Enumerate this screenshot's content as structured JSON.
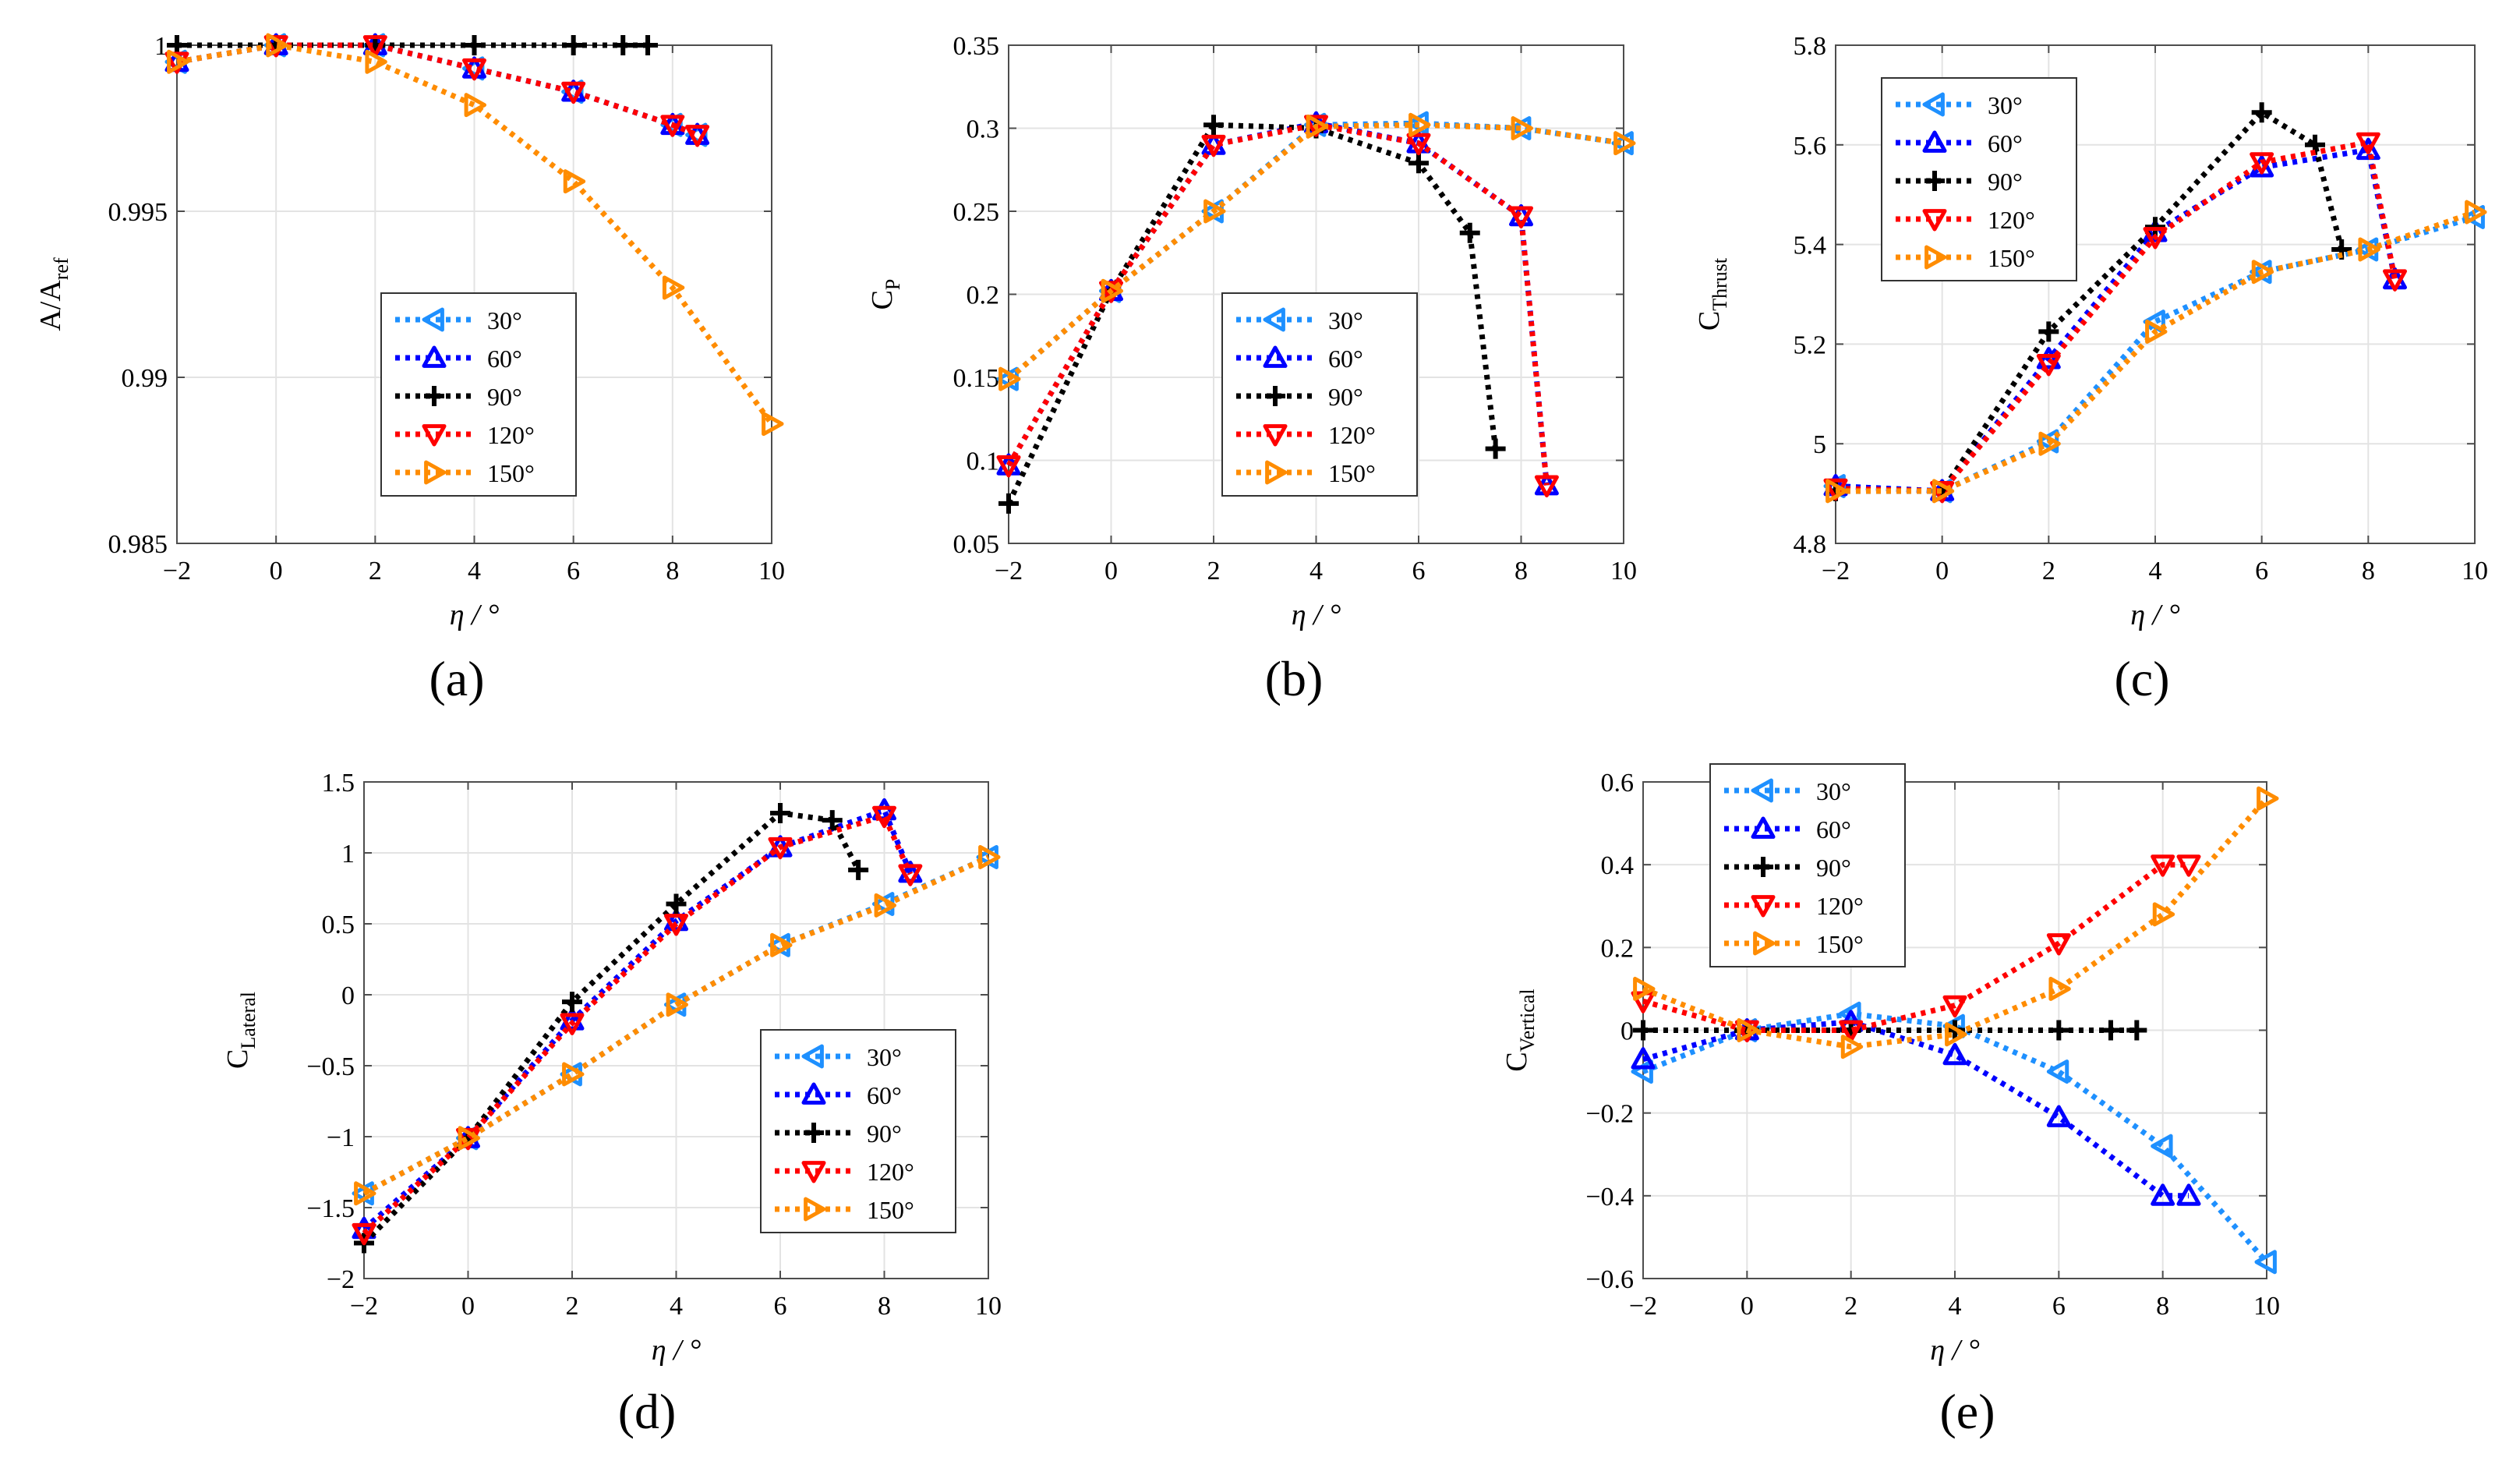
{
  "colors": {
    "30": "#1e90ff",
    "60": "#0000ff",
    "90": "#000000",
    "120": "#ff0000",
    "150": "#ff8c00"
  },
  "chart_data": [
    {
      "id": "a",
      "type": "line",
      "panel_label": "(a)",
      "ylabel_main": "A/A",
      "ylabel_sub": "ref",
      "xlabel": "η / °",
      "xlim": [
        -2,
        10
      ],
      "ylim": [
        0.985,
        1.0
      ],
      "xticks": [
        -2,
        0,
        2,
        4,
        6,
        8,
        10
      ],
      "xtick_labels": [
        "−2",
        "0",
        "2",
        "4",
        "6",
        "8",
        "10"
      ],
      "yticks": [
        0.985,
        0.99,
        0.995,
        1.0
      ],
      "ytick_labels": [
        "0.985",
        "0.99",
        "0.995",
        "1"
      ],
      "legend_position": "lower-center",
      "series": [
        {
          "name": "30°",
          "key": "30",
          "marker": "tri-left",
          "x": [
            -2,
            0,
            2,
            4,
            6,
            8,
            8.5
          ],
          "y": [
            0.9995,
            1.0,
            1.0,
            0.9993,
            0.9986,
            0.9976,
            0.9973
          ]
        },
        {
          "name": "60°",
          "key": "60",
          "marker": "tri-up",
          "x": [
            -2,
            0,
            2,
            4,
            6,
            8,
            8.5
          ],
          "y": [
            0.9995,
            1.0,
            1.0,
            0.9993,
            0.9986,
            0.9976,
            0.9973
          ]
        },
        {
          "name": "90°",
          "key": "90",
          "marker": "plus",
          "x": [
            -2,
            0,
            2,
            4,
            6,
            7,
            7.5
          ],
          "y": [
            1.0,
            1.0,
            1.0,
            1.0,
            1.0,
            1.0,
            1.0
          ]
        },
        {
          "name": "120°",
          "key": "120",
          "marker": "tri-down",
          "x": [
            -2,
            0,
            2,
            4,
            6,
            8,
            8.5
          ],
          "y": [
            0.9995,
            1.0,
            1.0,
            0.9993,
            0.9986,
            0.9976,
            0.9973
          ]
        },
        {
          "name": "150°",
          "key": "150",
          "marker": "tri-right",
          "x": [
            -2,
            0,
            2,
            4,
            6,
            8,
            10
          ],
          "y": [
            0.9995,
            1.0,
            0.9995,
            0.9982,
            0.9959,
            0.9927,
            0.9886
          ]
        }
      ]
    },
    {
      "id": "b",
      "type": "line",
      "panel_label": "(b)",
      "ylabel_main": "C",
      "ylabel_sub": "P",
      "xlabel": "η / °",
      "xlim": [
        -2,
        10
      ],
      "ylim": [
        0.05,
        0.35
      ],
      "xticks": [
        -2,
        0,
        2,
        4,
        6,
        8,
        10
      ],
      "xtick_labels": [
        "−2",
        "0",
        "2",
        "4",
        "6",
        "8",
        "10"
      ],
      "yticks": [
        0.05,
        0.1,
        0.15,
        0.2,
        0.25,
        0.3,
        0.35
      ],
      "ytick_labels": [
        "0.05",
        "0.1",
        "0.15",
        "0.2",
        "0.25",
        "0.3",
        "0.35"
      ],
      "legend_position": "lower-center",
      "series": [
        {
          "name": "30°",
          "key": "30",
          "marker": "tri-left",
          "x": [
            -2,
            0,
            2,
            4,
            6,
            8,
            10
          ],
          "y": [
            0.149,
            0.202,
            0.25,
            0.302,
            0.303,
            0.3,
            0.291
          ]
        },
        {
          "name": "60°",
          "key": "60",
          "marker": "tri-up",
          "x": [
            -2,
            0,
            2,
            4,
            6,
            8,
            8.5
          ],
          "y": [
            0.097,
            0.202,
            0.29,
            0.303,
            0.291,
            0.247,
            0.085
          ]
        },
        {
          "name": "90°",
          "key": "90",
          "marker": "plus",
          "x": [
            -2,
            0,
            2,
            4,
            6,
            7,
            7.5
          ],
          "y": [
            0.074,
            0.202,
            0.302,
            0.3,
            0.279,
            0.237,
            0.107
          ]
        },
        {
          "name": "120°",
          "key": "120",
          "marker": "tri-down",
          "x": [
            -2,
            0,
            2,
            4,
            6,
            8,
            8.5
          ],
          "y": [
            0.097,
            0.202,
            0.29,
            0.302,
            0.291,
            0.247,
            0.085
          ]
        },
        {
          "name": "150°",
          "key": "150",
          "marker": "tri-right",
          "x": [
            -2,
            0,
            2,
            4,
            6,
            8,
            10
          ],
          "y": [
            0.149,
            0.202,
            0.25,
            0.301,
            0.302,
            0.3,
            0.291
          ]
        }
      ]
    },
    {
      "id": "c",
      "type": "line",
      "panel_label": "(c)",
      "ylabel_main": "C",
      "ylabel_sub": "Thrust",
      "xlabel": "η / °",
      "xlim": [
        -2,
        10
      ],
      "ylim": [
        4.8,
        5.8
      ],
      "xticks": [
        -2,
        0,
        2,
        4,
        6,
        8,
        10
      ],
      "xtick_labels": [
        "−2",
        "0",
        "2",
        "4",
        "6",
        "8",
        "10"
      ],
      "yticks": [
        4.8,
        5.0,
        5.2,
        5.4,
        5.6,
        5.8
      ],
      "ytick_labels": [
        "4.8",
        "5",
        "5.2",
        "5.4",
        "5.6",
        "5.8"
      ],
      "legend_position": "top-left",
      "series": [
        {
          "name": "30°",
          "key": "30",
          "marker": "tri-left",
          "x": [
            -2,
            0,
            2,
            4,
            6,
            8,
            10
          ],
          "y": [
            4.915,
            4.905,
            5.005,
            5.245,
            5.345,
            5.39,
            5.455
          ]
        },
        {
          "name": "60°",
          "key": "60",
          "marker": "tri-up",
          "x": [
            -2,
            0,
            2,
            4,
            6,
            8,
            8.5
          ],
          "y": [
            4.915,
            4.905,
            5.17,
            5.425,
            5.555,
            5.59,
            5.33
          ]
        },
        {
          "name": "90°",
          "key": "90",
          "marker": "plus",
          "x": [
            -2,
            0,
            2,
            4,
            6,
            7,
            7.5
          ],
          "y": [
            4.905,
            4.905,
            5.225,
            5.435,
            5.665,
            5.6,
            5.39
          ]
        },
        {
          "name": "120°",
          "key": "120",
          "marker": "tri-down",
          "x": [
            -2,
            0,
            2,
            4,
            6,
            8,
            8.5
          ],
          "y": [
            4.91,
            4.905,
            5.16,
            5.415,
            5.565,
            5.605,
            5.33
          ]
        },
        {
          "name": "150°",
          "key": "150",
          "marker": "tri-right",
          "x": [
            -2,
            0,
            2,
            4,
            6,
            8,
            10
          ],
          "y": [
            4.905,
            4.905,
            5.0,
            5.225,
            5.345,
            5.39,
            5.465
          ]
        }
      ]
    },
    {
      "id": "d",
      "type": "line",
      "panel_label": "(d)",
      "ylabel_main": "C",
      "ylabel_sub": "Lateral",
      "xlabel": "η / °",
      "xlim": [
        -2,
        10
      ],
      "ylim": [
        -2,
        1.5
      ],
      "xticks": [
        -2,
        0,
        2,
        4,
        6,
        8,
        10
      ],
      "xtick_labels": [
        "−2",
        "0",
        "2",
        "4",
        "6",
        "8",
        "10"
      ],
      "yticks": [
        -2,
        -1.5,
        -1,
        -0.5,
        0,
        0.5,
        1,
        1.5
      ],
      "ytick_labels": [
        "−2",
        "−1.5",
        "−1",
        "−0.5",
        "0",
        "0.5",
        "1",
        "1.5"
      ],
      "legend_position": "lower-right",
      "series": [
        {
          "name": "30°",
          "key": "30",
          "marker": "tri-left",
          "x": [
            -2,
            0,
            2,
            4,
            6,
            8,
            10
          ],
          "y": [
            -1.4,
            -1.01,
            -0.56,
            -0.07,
            0.35,
            0.64,
            0.97
          ]
        },
        {
          "name": "60°",
          "key": "60",
          "marker": "tri-up",
          "x": [
            -2,
            0,
            2,
            4,
            6,
            8,
            8.5
          ],
          "y": [
            -1.65,
            -1.01,
            -0.18,
            0.52,
            1.04,
            1.3,
            0.86
          ]
        },
        {
          "name": "90°",
          "key": "90",
          "marker": "plus",
          "x": [
            -2,
            0,
            2,
            4,
            6,
            7,
            7.5
          ],
          "y": [
            -1.75,
            -1.01,
            -0.05,
            0.64,
            1.28,
            1.23,
            0.88
          ]
        },
        {
          "name": "120°",
          "key": "120",
          "marker": "tri-down",
          "x": [
            -2,
            0,
            2,
            4,
            6,
            8,
            8.5
          ],
          "y": [
            -1.68,
            -1.01,
            -0.2,
            0.5,
            1.04,
            1.26,
            0.85
          ]
        },
        {
          "name": "150°",
          "key": "150",
          "marker": "tri-right",
          "x": [
            -2,
            0,
            2,
            4,
            6,
            8,
            10
          ],
          "y": [
            -1.4,
            -1.01,
            -0.56,
            -0.07,
            0.35,
            0.63,
            0.97
          ]
        }
      ]
    },
    {
      "id": "e",
      "type": "line",
      "panel_label": "(e)",
      "ylabel_main": "C",
      "ylabel_sub": "Vertical",
      "xlabel": "η / °",
      "xlim": [
        -2,
        10
      ],
      "ylim": [
        -0.6,
        0.6
      ],
      "xticks": [
        -2,
        0,
        2,
        4,
        6,
        8,
        10
      ],
      "xtick_labels": [
        "−2",
        "0",
        "2",
        "4",
        "6",
        "8",
        "10"
      ],
      "yticks": [
        -0.6,
        -0.4,
        -0.2,
        0,
        0.2,
        0.4,
        0.6
      ],
      "ytick_labels": [
        "−0.6",
        "−0.4",
        "−0.2",
        "0",
        "0.2",
        "0.4",
        "0.6"
      ],
      "legend_position": "top-left",
      "series": [
        {
          "name": "30°",
          "key": "30",
          "marker": "tri-left",
          "x": [
            -2,
            0,
            2,
            4,
            6,
            8,
            10
          ],
          "y": [
            -0.1,
            0.0,
            0.04,
            0.01,
            -0.1,
            -0.28,
            -0.56
          ]
        },
        {
          "name": "60°",
          "key": "60",
          "marker": "tri-up",
          "x": [
            -2,
            0,
            2,
            4,
            6,
            8,
            8.5
          ],
          "y": [
            -0.07,
            0.0,
            0.02,
            -0.06,
            -0.21,
            -0.4,
            -0.4
          ]
        },
        {
          "name": "90°",
          "key": "90",
          "marker": "plus",
          "x": [
            -2,
            0,
            2,
            4,
            6,
            7,
            7.5
          ],
          "y": [
            0.0,
            0.0,
            0.0,
            0.0,
            0.0,
            0.0,
            0.0
          ]
        },
        {
          "name": "120°",
          "key": "120",
          "marker": "tri-down",
          "x": [
            -2,
            0,
            2,
            4,
            6,
            8,
            8.5
          ],
          "y": [
            0.07,
            0.0,
            0.0,
            0.06,
            0.21,
            0.4,
            0.4
          ]
        },
        {
          "name": "150°",
          "key": "150",
          "marker": "tri-right",
          "x": [
            -2,
            0,
            2,
            4,
            6,
            8,
            10
          ],
          "y": [
            0.1,
            0.0,
            -0.04,
            -0.01,
            0.1,
            0.28,
            0.56
          ]
        }
      ]
    }
  ]
}
